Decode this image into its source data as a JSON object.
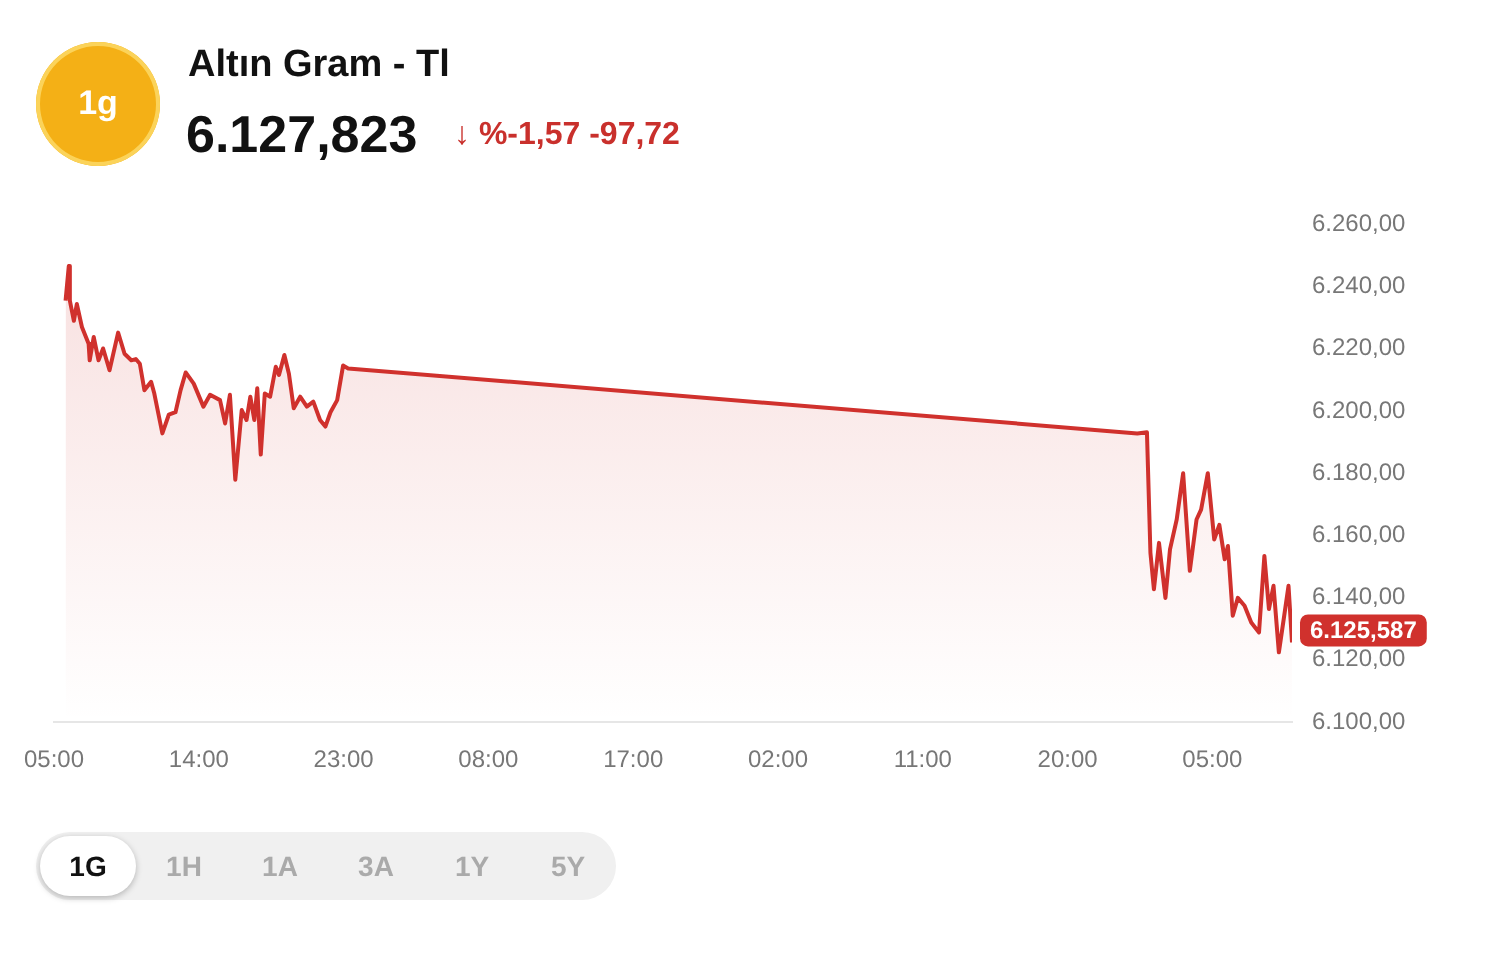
{
  "chart_data": {
    "type": "area",
    "title": "Altın Gram - Tl",
    "annotations": [
      "1g",
      "6.127,823",
      "↓ %-1,57 -97,72",
      "1G",
      "1H",
      "1A",
      "3A",
      "1Y",
      "5Y"
    ],
    "x": [
      "--01-01T05:43",
      "--01-01T05:55",
      "--01-01T05:59",
      "--01-01T06:14",
      "--01-01T06:25",
      "--01-01T06:44",
      "--01-01T07:09",
      "--01-01T07:13",
      "--01-01T07:28",
      "--01-01T07:46",
      "--01-01T08:03",
      "--01-01T08:27",
      "--01-01T08:59",
      "--01-01T09:23",
      "--01-01T09:48",
      "--01-01T10:05",
      "--01-01T10:20",
      "--01-01T10:37",
      "--01-01T11:02",
      "--01-01T11:14",
      "--01-01T11:44",
      "--01-01T12:08",
      "--01-01T12:33",
      "--01-01T12:52",
      "--01-01T13:11",
      "--01-01T13:41",
      "--01-01T14:17",
      "--01-01T14:42",
      "--01-01T15:19",
      "--01-01T15:38",
      "--01-01T15:56",
      "--01-01T16:16",
      "--01-01T16:40",
      "--01-01T16:58",
      "--01-01T17:12",
      "--01-01T17:27",
      "--01-01T17:38",
      "--01-01T17:51",
      "--01-01T18:06",
      "--01-01T18:26",
      "--01-01T18:47",
      "--01-01T18:59",
      "--01-01T19:19",
      "--01-01T19:36",
      "--01-01T19:54",
      "--01-01T20:18",
      "--01-01T20:43",
      "--01-01T21:07",
      "--01-01T21:32",
      "--01-01T21:52",
      "--01-01T22:11",
      "--01-01T22:36",
      "--01-01T22:58",
      "--01-01T23:17",
      "--01-04T00:20",
      "--01-04T00:56",
      "--01-04T01:09",
      "--01-04T01:22",
      "--01-04T01:41",
      "--01-04T02:05",
      "--01-04T02:22",
      "--01-04T02:47",
      "--01-04T03:11",
      "--01-04T03:36",
      "--01-04T04:01",
      "--01-04T04:18",
      "--01-04T04:43",
      "--01-04T05:07",
      "--01-04T05:26",
      "--01-04T05:46",
      "--01-04T05:58",
      "--01-04T06:16",
      "--01-04T06:35",
      "--01-04T07:00",
      "--01-04T07:25",
      "--01-04T07:54",
      "--01-04T08:14",
      "--01-04T08:31",
      "--01-04T08:48",
      "--01-04T09:08",
      "--01-04T09:28",
      "--01-04T09:44",
      "--01-04T09:57"
    ],
    "values": [
      6235.5,
      6246.6,
      6235.5,
      6229,
      6234.4,
      6227,
      6221.6,
      6216.3,
      6223.8,
      6216.3,
      6220.1,
      6213.1,
      6225.2,
      6218.4,
      6216.3,
      6216.7,
      6215.2,
      6206.7,
      6209.4,
      6205.6,
      6192.8,
      6198.8,
      6199.6,
      6206.7,
      6212.4,
      6208.8,
      6201.4,
      6205.2,
      6203.5,
      6196,
      6205.2,
      6177.9,
      6200.3,
      6197.1,
      6204.6,
      6197.1,
      6207.3,
      6186,
      6205.6,
      6204.6,
      6214.2,
      6211.6,
      6218,
      6212,
      6200.9,
      6204.6,
      6201.4,
      6203,
      6197.1,
      6195,
      6199.6,
      6203.5,
      6214.6,
      6213.7,
      6192.8,
      6193.2,
      6154.4,
      6142.7,
      6157.6,
      6139.9,
      6155.5,
      6165.1,
      6180,
      6148.6,
      6165.1,
      6168.3,
      6180,
      6158.7,
      6163.4,
      6152.3,
      6156.6,
      6134.2,
      6139.9,
      6137.4,
      6132,
      6128.8,
      6153.4,
      6136.3,
      6143.8,
      6122.4,
      6134.2,
      6143.8,
      6125.587
    ],
    "value_labels": [
      null,
      null,
      null,
      null,
      null,
      null,
      null,
      null,
      null,
      null,
      null,
      null,
      null,
      null,
      null,
      null,
      null,
      null,
      null,
      null,
      null,
      null,
      null,
      null,
      null,
      null,
      null,
      null,
      null,
      null,
      null,
      null,
      null,
      null,
      null,
      null,
      null,
      null,
      null,
      null,
      null,
      null,
      null,
      null,
      null,
      null,
      null,
      null,
      null,
      null,
      null,
      null,
      null,
      null,
      null,
      null,
      null,
      null,
      null,
      null,
      null,
      null,
      null,
      null,
      null,
      null,
      null,
      null,
      null,
      null,
      null,
      null,
      null,
      null,
      null,
      null,
      null,
      null,
      null,
      null,
      null,
      null,
      "6.125,587"
    ],
    "color": "#d0312d",
    "xlim": [
      "--01-01T05:00",
      "--01-04T09:57"
    ],
    "xticks": [
      {
        "value": "--01-01T05:00",
        "label": "05:00"
      },
      {
        "value": "--01-01T14:00",
        "label": "14:00"
      },
      {
        "value": "--01-01T23:00",
        "label": "23:00"
      },
      {
        "value": "--01-02T08:00",
        "label": "08:00"
      },
      {
        "value": "--01-02T17:00",
        "label": "17:00"
      },
      {
        "value": "--01-03T02:00",
        "label": "02:00"
      },
      {
        "value": "--01-03T11:00",
        "label": "11:00"
      },
      {
        "value": "--01-03T20:00",
        "label": "20:00"
      },
      {
        "value": "--01-04T05:00",
        "label": "05:00"
      }
    ],
    "ylim": [
      6100,
      6260
    ],
    "yticks": [
      {
        "value": 6100,
        "label": "6.100,00"
      },
      {
        "value": 6120,
        "label": "6.120,00"
      },
      {
        "value": 6140,
        "label": "6.140,00"
      },
      {
        "value": 6160,
        "label": "6.160,00"
      },
      {
        "value": 6180,
        "label": "6.180,00"
      },
      {
        "value": 6200,
        "label": "6.200,00"
      },
      {
        "value": 6220,
        "label": "6.220,00"
      },
      {
        "value": 6240,
        "label": "6.240,00"
      },
      {
        "value": 6260,
        "label": "6.260,00"
      }
    ],
    "grid": false,
    "marker": "none"
  }
}
